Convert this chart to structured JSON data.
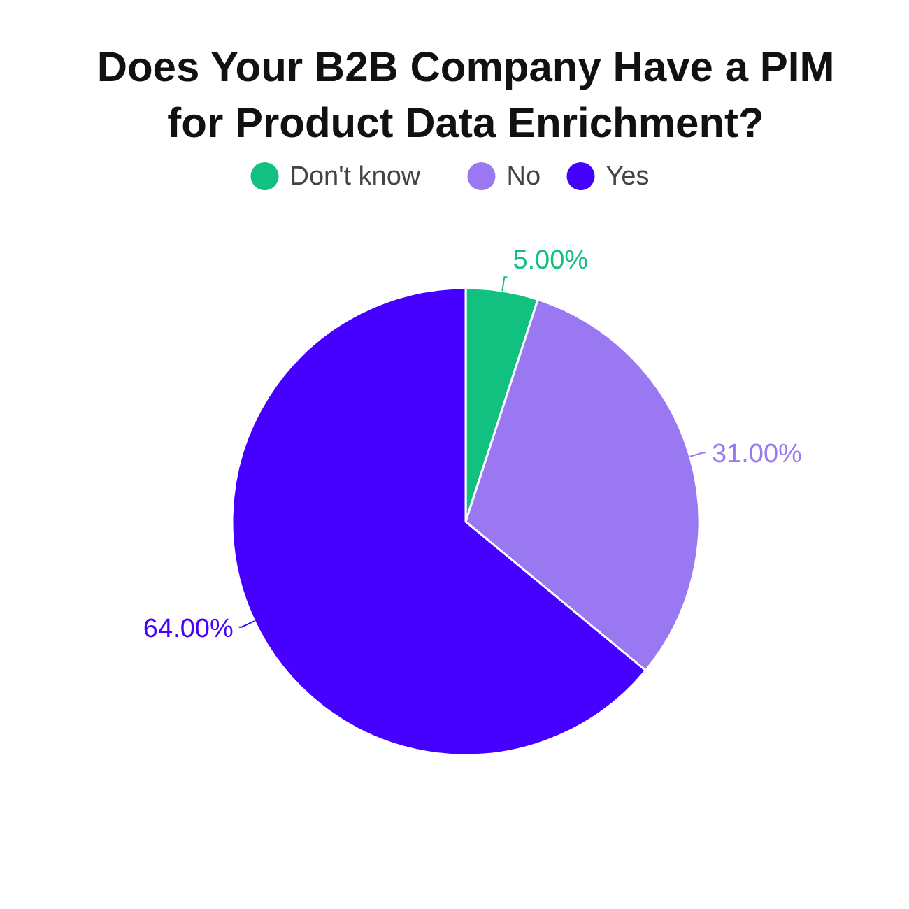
{
  "chart_data": {
    "type": "pie",
    "title": "Does Your B2B Company Have a PIM for Product Data Enrichment?",
    "categories": [
      "Don't know",
      "No",
      "Yes"
    ],
    "values": [
      5,
      31,
      64
    ],
    "colors": [
      "#12c07f",
      "#9978f2",
      "#4500ff"
    ],
    "value_labels": [
      "5.00%",
      "31.00%",
      "64.00%"
    ],
    "legend": "top"
  }
}
